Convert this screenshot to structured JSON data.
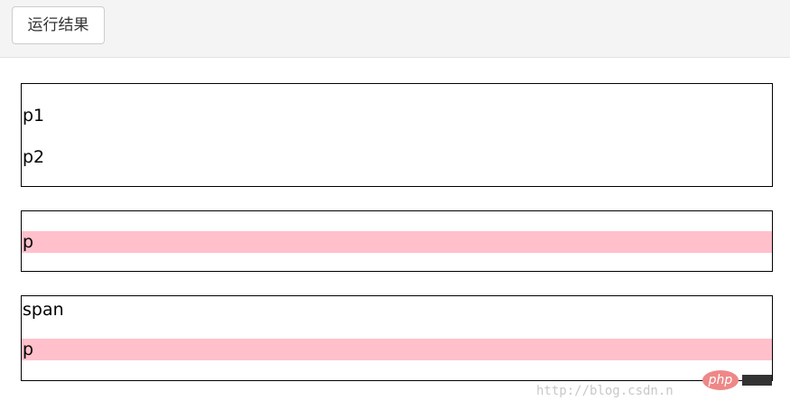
{
  "toolbar": {
    "button": "运行结果"
  },
  "boxes": [
    {
      "lines": [
        "p1",
        "p2"
      ]
    },
    {
      "lines": [
        "p"
      ]
    },
    {
      "lines": [
        "span",
        "p"
      ]
    }
  ],
  "watermark": {
    "logo": "php",
    "url": "http://blog.csdn.n"
  }
}
